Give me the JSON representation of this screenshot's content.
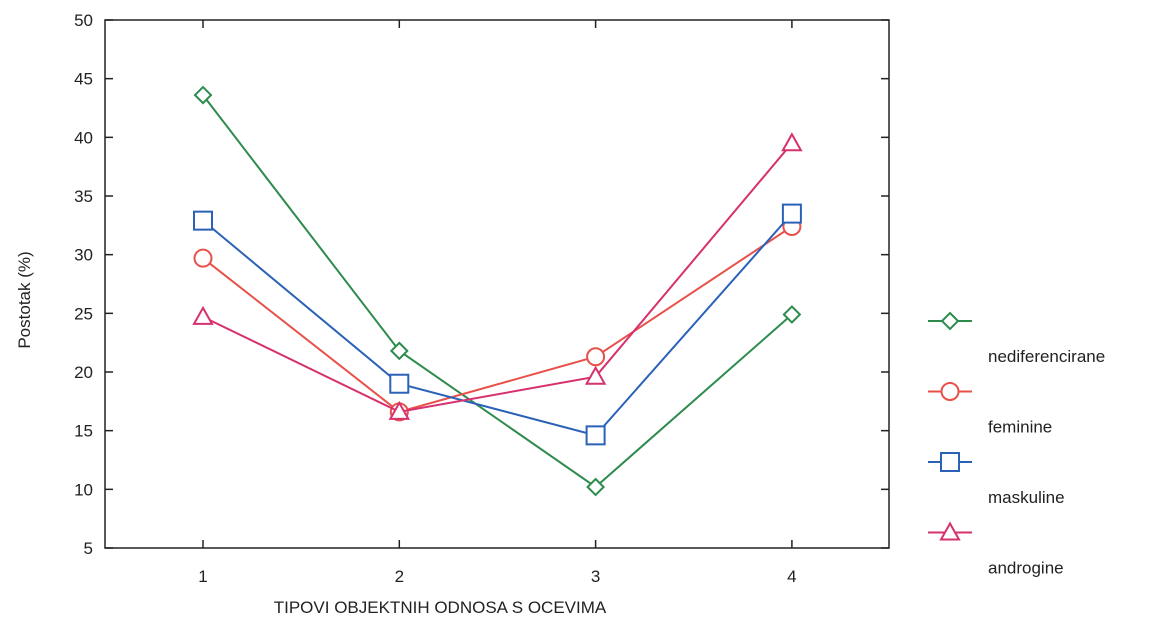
{
  "chart_data": {
    "type": "line",
    "xlabel": "TIPOVI OBJEKTNIH ODNOSA S OCEVIMA",
    "ylabel": "Postotak (%)",
    "categories": [
      "1",
      "2",
      "3",
      "4"
    ],
    "ylim": [
      5,
      50
    ],
    "yticks": [
      "5",
      "10",
      "15",
      "20",
      "25",
      "30",
      "35",
      "40",
      "45",
      "50"
    ],
    "grid": false,
    "legend_position": "right",
    "series": [
      {
        "name": "nediferencirane",
        "values": [
          43.6,
          21.8,
          10.2,
          24.9
        ],
        "color": "#2e8b4e",
        "marker": "diamond"
      },
      {
        "name": "feminine",
        "values": [
          29.7,
          16.6,
          21.3,
          32.4
        ],
        "color": "#e8504a",
        "marker": "circle"
      },
      {
        "name": "maskuline",
        "values": [
          32.9,
          19.0,
          14.6,
          33.5
        ],
        "color": "#2b62b8",
        "marker": "square"
      },
      {
        "name": "androgine",
        "values": [
          24.7,
          16.6,
          19.6,
          39.5
        ],
        "color": "#d6316e",
        "marker": "triangle"
      }
    ]
  }
}
